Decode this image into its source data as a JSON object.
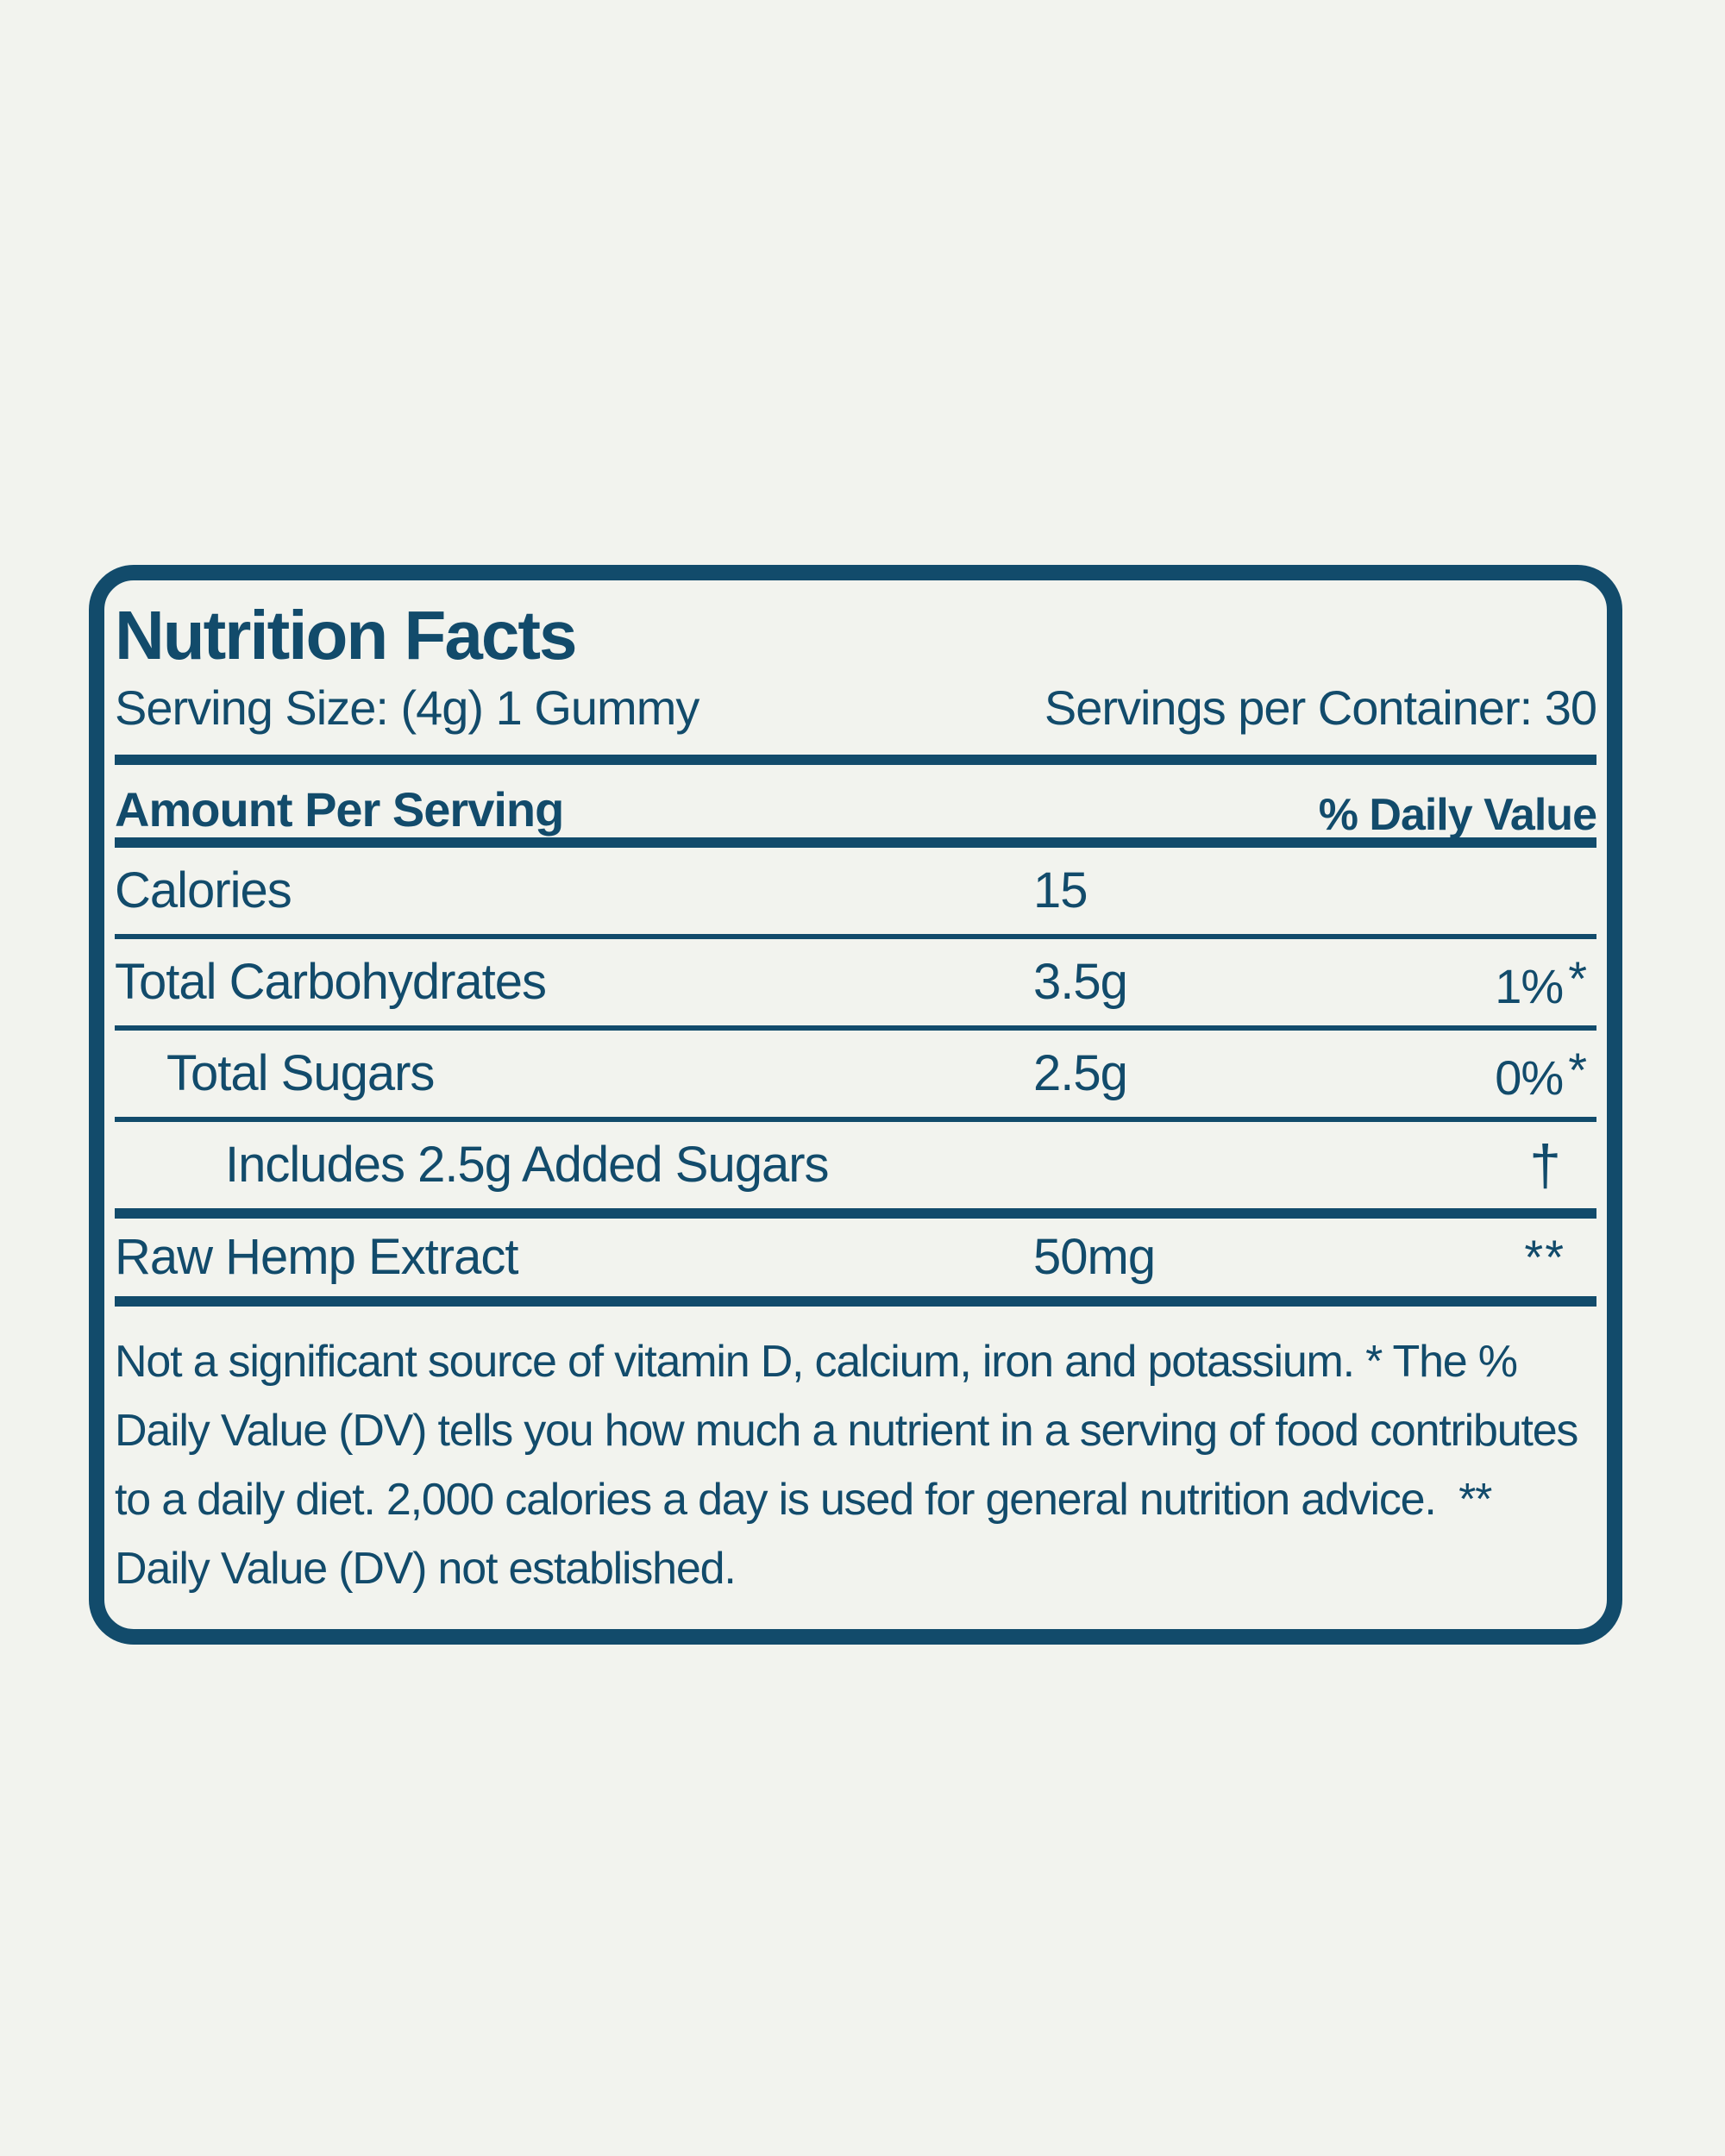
{
  "label": {
    "title": "Nutrition Facts",
    "serving_size": "Serving Size: (4g) 1 Gummy",
    "servings_per_container": "Servings per Container: 30",
    "amount_per_serving": "Amount Per Serving",
    "daily_value_header": "% Daily Value",
    "rows": [
      {
        "name": "Calories",
        "amount": "15",
        "dv": "",
        "mark": ""
      },
      {
        "name": "Total Carbohydrates",
        "amount": "3.5g",
        "dv": "1%",
        "mark": "*"
      },
      {
        "name": "Total Sugars",
        "amount": "2.5g",
        "dv": "0%",
        "mark": "*"
      },
      {
        "name": "Includes 2.5g Added Sugars",
        "amount": "",
        "dv": "",
        "mark": "†"
      },
      {
        "name": "Raw Hemp Extract",
        "amount": "50mg",
        "dv": "",
        "mark": "**"
      }
    ],
    "footnote": "Not a significant source of vitamin D, calcium, iron and potassium. * The % Daily Value (DV) tells you how much a nutrient in a serving of food contributes to a daily diet. 2,000 calories a day is used for general nutrition advice.  ** Daily Value (DV) not established.",
    "colors": {
      "ink": "#124b6b",
      "background": "#f2f3ee"
    }
  }
}
